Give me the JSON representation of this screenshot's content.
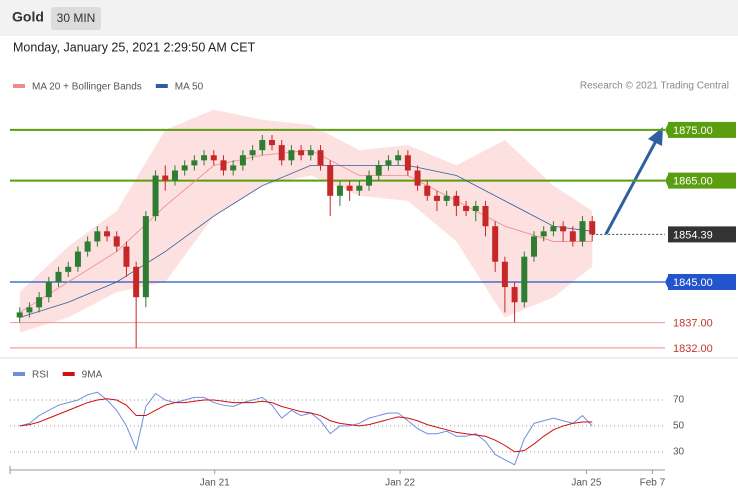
{
  "header": {
    "instrument": "Gold",
    "timeframe": "30 MIN",
    "timestamp": "Monday, January 25, 2021 2:29:50 AM CET",
    "credit": "Research © 2021 Trading Central"
  },
  "chart_data": [
    {
      "type": "candlestick",
      "x": [
        0,
        1,
        2,
        3,
        4,
        5,
        6,
        7,
        8,
        9,
        10,
        11,
        12,
        13,
        14,
        15,
        16,
        17,
        18,
        19,
        20,
        21,
        22,
        23,
        24,
        25,
        26,
        27,
        28,
        29,
        30,
        31,
        32,
        33,
        34,
        35,
        36,
        37,
        38,
        39,
        40,
        41,
        42,
        43,
        44,
        45,
        46,
        47,
        48,
        49,
        50,
        51,
        52,
        53,
        54,
        55,
        56,
        57,
        58,
        59
      ],
      "open": [
        1838,
        1839,
        1840,
        1842,
        1845,
        1847,
        1848,
        1851,
        1853,
        1855,
        1854,
        1852,
        1848,
        1842,
        1858,
        1866,
        1865,
        1867,
        1868,
        1869,
        1870,
        1869,
        1867,
        1868,
        1870,
        1871,
        1873,
        1872,
        1869,
        1871,
        1870,
        1871,
        1868,
        1862,
        1864,
        1863,
        1864,
        1866,
        1868,
        1869,
        1870,
        1867,
        1864,
        1862,
        1861,
        1862,
        1860,
        1859,
        1860,
        1856,
        1849,
        1844,
        1841,
        1850,
        1854,
        1855,
        1856,
        1855,
        1853,
        1857
      ],
      "high": [
        1840,
        1841,
        1843,
        1846,
        1848,
        1849,
        1852,
        1854,
        1856,
        1856,
        1855,
        1853,
        1849,
        1859,
        1867,
        1868,
        1868,
        1869,
        1870,
        1871,
        1871,
        1870,
        1869,
        1871,
        1872,
        1874,
        1874,
        1873,
        1872,
        1872,
        1872,
        1872,
        1869,
        1865,
        1865,
        1865,
        1867,
        1869,
        1870,
        1871,
        1871,
        1868,
        1865,
        1863,
        1863,
        1863,
        1861,
        1861,
        1861,
        1857,
        1850,
        1845,
        1851,
        1855,
        1856,
        1857,
        1857,
        1856,
        1858,
        1858
      ],
      "low": [
        1837,
        1838,
        1839,
        1841,
        1844,
        1846,
        1847,
        1850,
        1852,
        1853,
        1851,
        1846,
        1832,
        1840,
        1857,
        1863,
        1864,
        1866,
        1867,
        1868,
        1868,
        1866,
        1866,
        1867,
        1869,
        1870,
        1871,
        1868,
        1868,
        1869,
        1869,
        1867,
        1858,
        1860,
        1861,
        1862,
        1863,
        1865,
        1867,
        1868,
        1866,
        1863,
        1861,
        1859,
        1860,
        1858,
        1858,
        1857,
        1854,
        1847,
        1839,
        1837,
        1840,
        1849,
        1853,
        1854,
        1853,
        1852,
        1852,
        1853
      ],
      "close": [
        1839,
        1840,
        1842,
        1845,
        1847,
        1848,
        1851,
        1853,
        1855,
        1854,
        1852,
        1848,
        1842,
        1858,
        1866,
        1865,
        1867,
        1868,
        1869,
        1870,
        1869,
        1867,
        1868,
        1870,
        1871,
        1873,
        1872,
        1869,
        1871,
        1870,
        1871,
        1868,
        1862,
        1864,
        1863,
        1864,
        1866,
        1868,
        1869,
        1870,
        1867,
        1864,
        1862,
        1861,
        1862,
        1860,
        1859,
        1860,
        1856,
        1849,
        1844,
        1841,
        1850,
        1854,
        1855,
        1856,
        1855,
        1853,
        1857,
        1854.39
      ],
      "up_color": "#2e7d32",
      "down_color": "#c62828",
      "series": [
        {
          "name": "MA 20 + Bollinger Bands",
          "color": "#f08a8a",
          "band_color": "#fde1e1",
          "x": [
            0,
            5,
            10,
            15,
            20,
            25,
            30,
            35,
            40,
            45,
            50,
            55,
            59
          ],
          "values": [
            1839,
            1845,
            1851,
            1860,
            1868,
            1870,
            1871,
            1866,
            1866,
            1861,
            1856,
            1853,
            1853
          ],
          "upper": [
            1843,
            1852,
            1859,
            1875,
            1879,
            1877,
            1876,
            1871,
            1872,
            1868,
            1873,
            1864,
            1859
          ],
          "lower": [
            1835,
            1838,
            1843,
            1845,
            1858,
            1864,
            1866,
            1862,
            1861,
            1853,
            1838,
            1842,
            1848
          ]
        },
        {
          "name": "MA 50",
          "color": "#2f5f9e",
          "x": [
            0,
            5,
            10,
            15,
            20,
            25,
            30,
            35,
            40,
            45,
            50,
            55,
            59
          ],
          "values": [
            1838,
            1841,
            1845,
            1851,
            1858,
            1864,
            1868,
            1868,
            1868,
            1866,
            1861,
            1856,
            1855
          ]
        }
      ],
      "levels": [
        {
          "value": 1875,
          "label": "1875.00",
          "color": "#5a9e0f"
        },
        {
          "value": 1865,
          "label": "1865.00",
          "color": "#5a9e0f"
        },
        {
          "value": 1845,
          "label": "1845.00",
          "color": "#2255cc"
        },
        {
          "value": 1837,
          "label": "1837.00",
          "color": "#f0a0a0"
        },
        {
          "value": 1832,
          "label": "1832.00",
          "color": "#f0a0a0"
        }
      ],
      "last": 1854.39,
      "xlim": [
        -1,
        66.5
      ],
      "ylim": [
        1830.6,
        1880.9
      ]
    },
    {
      "type": "line",
      "x": [
        0,
        1,
        2,
        3,
        4,
        5,
        6,
        7,
        8,
        9,
        10,
        11,
        12,
        13,
        14,
        15,
        16,
        17,
        18,
        19,
        20,
        21,
        22,
        23,
        24,
        25,
        26,
        27,
        28,
        29,
        30,
        31,
        32,
        33,
        34,
        35,
        36,
        37,
        38,
        39,
        40,
        41,
        42,
        43,
        44,
        45,
        46,
        47,
        48,
        49,
        50,
        51,
        52,
        53,
        54,
        55,
        56,
        57,
        58,
        59
      ],
      "series": [
        {
          "name": "RSI",
          "color": "#6f8fdc",
          "values": [
            50,
            52,
            58,
            62,
            66,
            68,
            70,
            74,
            76,
            70,
            62,
            50,
            32,
            65,
            75,
            70,
            68,
            70,
            72,
            72,
            68,
            66,
            65,
            68,
            70,
            72,
            66,
            56,
            62,
            58,
            60,
            54,
            44,
            50,
            50,
            52,
            56,
            58,
            60,
            60,
            54,
            48,
            44,
            44,
            46,
            42,
            42,
            44,
            38,
            28,
            24,
            20,
            40,
            52,
            54,
            56,
            54,
            52,
            58,
            50
          ]
        },
        {
          "name": "9MA",
          "color": "#cc1111",
          "values": [
            50,
            51,
            53,
            56,
            59,
            62,
            65,
            68,
            70,
            71,
            70,
            66,
            58,
            58,
            62,
            66,
            68,
            68,
            69,
            70,
            70,
            69,
            68,
            68,
            68,
            69,
            68,
            65,
            63,
            61,
            60,
            58,
            54,
            52,
            51,
            50,
            51,
            53,
            55,
            57,
            56,
            54,
            51,
            49,
            47,
            45,
            44,
            43,
            42,
            39,
            35,
            30,
            31,
            36,
            42,
            47,
            50,
            52,
            53,
            53
          ]
        }
      ],
      "xlim": [
        -1,
        66.5
      ],
      "ylim": [
        16,
        97
      ],
      "yticks": [
        30,
        50,
        70
      ],
      "grid": true,
      "xticks": [
        {
          "value": 20.1,
          "label": "Jan 21"
        },
        {
          "value": 39.2,
          "label": "Jan 22"
        },
        {
          "value": 58.4,
          "label": "Jan 25"
        },
        {
          "value": 65.2,
          "label": "Feb 7"
        }
      ]
    }
  ]
}
